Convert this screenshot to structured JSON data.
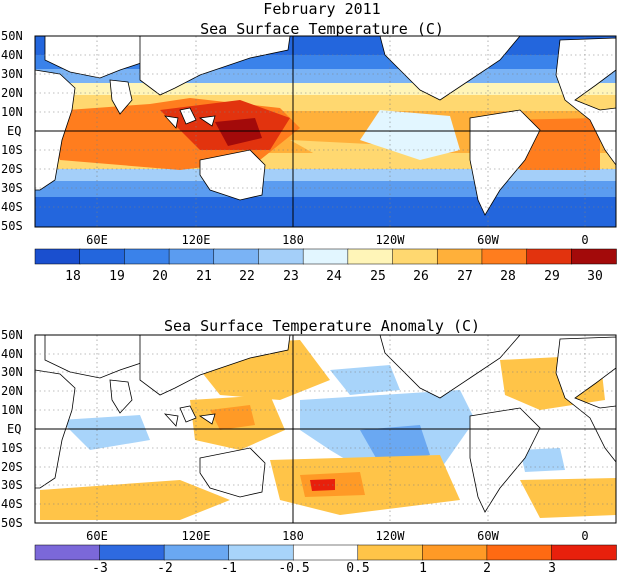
{
  "title": "February 2011",
  "panels": [
    {
      "id": "sst",
      "title": "Sea Surface Temperature (C)",
      "lat_labels": [
        "50N",
        "40N",
        "30N",
        "20N",
        "10N",
        "EQ",
        "10S",
        "20S",
        "30S",
        "40S",
        "50S"
      ],
      "lon_labels": [
        "60E",
        "120E",
        "180",
        "120W",
        "60W",
        "0"
      ],
      "colorbar": {
        "colors": [
          "#1a4fcf",
          "#2366dd",
          "#3a82ea",
          "#5b9cf0",
          "#7ab3f5",
          "#a4cff9",
          "#e2f6ff",
          "#fff5b8",
          "#ffd870",
          "#ffb03a",
          "#ff7d1e",
          "#e2330e",
          "#a30a0a"
        ],
        "labels": [
          "18",
          "19",
          "20",
          "21",
          "22",
          "23",
          "24",
          "25",
          "26",
          "27",
          "28",
          "29",
          "30"
        ]
      }
    },
    {
      "id": "anom",
      "title": "Sea Surface Temperature Anomaly (C)",
      "lat_labels": [
        "50N",
        "40N",
        "30N",
        "20N",
        "10N",
        "EQ",
        "10S",
        "20S",
        "30S",
        "40S",
        "50S"
      ],
      "lon_labels": [
        "60E",
        "120E",
        "180",
        "120W",
        "60W",
        "0"
      ],
      "colorbar": {
        "colors": [
          "#7b68d9",
          "#2e6ae0",
          "#6aa8f2",
          "#a8d4fa",
          "#ffffff",
          "#ffc448",
          "#ff9a26",
          "#ff6a12",
          "#e8200c"
        ],
        "labels": [
          "-3",
          "-2",
          "-1",
          "-0.5",
          "0.5",
          "1",
          "2",
          "3"
        ]
      }
    }
  ],
  "colors": {
    "land": "#ffffff",
    "coast": "#000000",
    "frame": "#000000",
    "grid": "#7f7f7f"
  }
}
